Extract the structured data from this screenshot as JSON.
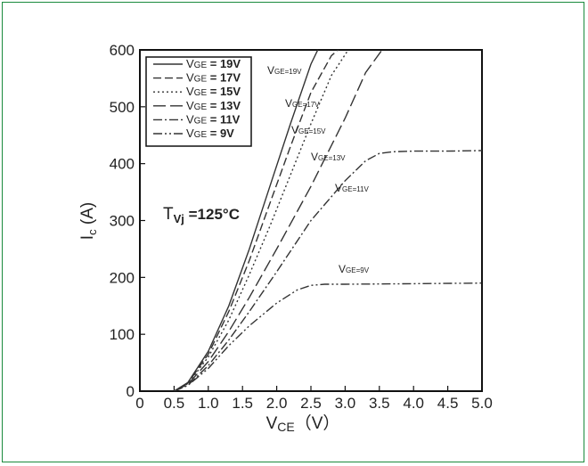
{
  "chart_data": {
    "type": "line",
    "title": "",
    "xlabel": {
      "main": "V",
      "sub": "CE",
      "unit": "（V）"
    },
    "ylabel": {
      "main": "I",
      "sub": "c",
      "unit": " (A)"
    },
    "xlim": [
      0,
      5.0
    ],
    "ylim": [
      0,
      600
    ],
    "x_ticks": [
      "0",
      "0.5",
      "1.0",
      "1.5",
      "2.0",
      "2.5",
      "3.0",
      "3.5",
      "4.0",
      "4.5",
      "5.0"
    ],
    "y_ticks": [
      "0",
      "100",
      "200",
      "300",
      "400",
      "500",
      "600"
    ],
    "grid": false,
    "legend_position": "top-left",
    "condition": {
      "main": "T",
      "sub": "Vj",
      "value": " =125°C"
    },
    "series": [
      {
        "name": "V_GE = 19V",
        "legend_label": "= 19V",
        "annotation": "=19V",
        "style": "solid",
        "x": [
          0.5,
          0.7,
          1.0,
          1.3,
          1.6,
          1.9,
          2.2,
          2.5,
          2.6
        ],
        "y": [
          0,
          15,
          70,
          150,
          250,
          360,
          470,
          575,
          600
        ]
      },
      {
        "name": "V_GE = 17V",
        "legend_label": "= 17V",
        "annotation": "=17V",
        "style": "long-dash",
        "x": [
          0.5,
          0.7,
          1.0,
          1.3,
          1.6,
          1.9,
          2.2,
          2.5,
          2.8,
          3.0
        ],
        "y": [
          0,
          14,
          65,
          140,
          230,
          330,
          430,
          525,
          590,
          610
        ]
      },
      {
        "name": "V_GE = 15V",
        "legend_label": "= 15V",
        "annotation": "=15V",
        "style": "dotted",
        "x": [
          0.5,
          0.7,
          1.0,
          1.3,
          1.6,
          1.9,
          2.2,
          2.5,
          2.8,
          3.1
        ],
        "y": [
          0,
          13,
          60,
          125,
          205,
          290,
          380,
          470,
          555,
          610
        ]
      },
      {
        "name": "V_GE = 13V",
        "legend_label": "= 13V",
        "annotation": "=13V",
        "style": "dash-long",
        "x": [
          0.5,
          0.7,
          1.0,
          1.3,
          1.6,
          2.0,
          2.5,
          3.0,
          3.3,
          3.6
        ],
        "y": [
          0,
          12,
          52,
          105,
          165,
          250,
          360,
          480,
          560,
          610
        ]
      },
      {
        "name": "V_GE = 11V",
        "legend_label": "= 11V",
        "annotation": "=11V",
        "style": "dash-dot",
        "x": [
          0.5,
          0.7,
          1.0,
          1.3,
          1.6,
          2.0,
          2.5,
          3.0,
          3.3,
          3.5,
          3.7,
          4.0,
          4.5,
          5.0
        ],
        "y": [
          0,
          10,
          45,
          90,
          140,
          210,
          300,
          370,
          405,
          418,
          421,
          422,
          422,
          423
        ]
      },
      {
        "name": "V_GE = 9V",
        "legend_label": "= 9V",
        "annotation": "=9V",
        "style": "dash-dot-dot",
        "x": [
          0.5,
          0.7,
          1.0,
          1.3,
          1.6,
          2.0,
          2.3,
          2.5,
          2.7,
          3.0,
          4.0,
          5.0
        ],
        "y": [
          0,
          10,
          40,
          80,
          115,
          155,
          178,
          186,
          188,
          188,
          189,
          190
        ]
      }
    ],
    "legend_prefix": {
      "main": "V",
      "sub": "GE"
    },
    "annotation_prefix": {
      "main": "V",
      "sub": "GE"
    }
  }
}
